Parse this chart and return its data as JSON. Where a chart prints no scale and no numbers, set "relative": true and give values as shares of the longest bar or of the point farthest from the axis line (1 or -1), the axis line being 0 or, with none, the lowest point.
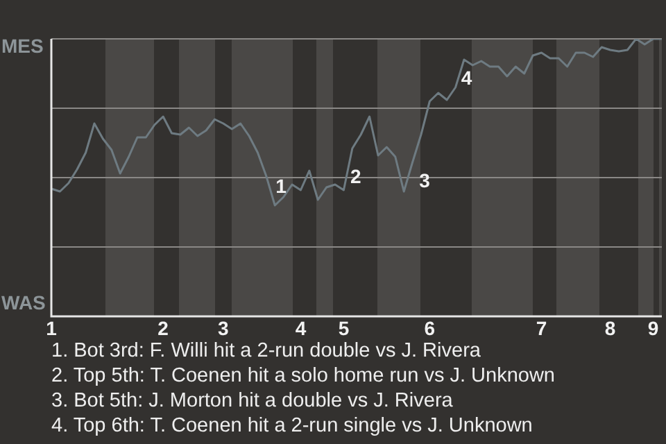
{
  "chart_data": {
    "type": "line",
    "relative": true,
    "categories": [
      "1",
      null,
      null,
      null,
      null,
      null,
      null,
      null,
      null,
      null,
      null,
      null,
      null,
      "2",
      null,
      null,
      null,
      null,
      null,
      null,
      "3",
      null,
      null,
      null,
      null,
      null,
      null,
      null,
      null,
      "4",
      null,
      null,
      null,
      null,
      "5",
      null,
      null,
      null,
      null,
      null,
      null,
      null,
      null,
      null,
      "6",
      null,
      null,
      null,
      null,
      null,
      null,
      null,
      null,
      null,
      null,
      null,
      null,
      "7",
      null,
      null,
      null,
      null,
      null,
      null,
      null,
      "8",
      null,
      null,
      null,
      null,
      "9",
      null
    ],
    "series": [
      {
        "color": "#6e7b82",
        "values": [
          0.46,
          0.45,
          0.48,
          0.53,
          0.59,
          0.695,
          0.64,
          0.6,
          0.515,
          0.575,
          0.645,
          0.645,
          0.69,
          0.72,
          0.66,
          0.655,
          0.68,
          0.65,
          0.67,
          0.71,
          0.695,
          0.675,
          0.695,
          0.65,
          0.59,
          0.505,
          0.4,
          0.43,
          0.475,
          0.455,
          0.525,
          0.42,
          0.465,
          0.475,
          0.455,
          0.605,
          0.655,
          0.72,
          0.58,
          0.61,
          0.575,
          0.45,
          0.555,
          0.655,
          0.775,
          0.805,
          0.78,
          0.825,
          0.925,
          0.905,
          0.92,
          0.9,
          0.9,
          0.865,
          0.9,
          0.875,
          0.94,
          0.95,
          0.93,
          0.93,
          0.9,
          0.95,
          0.95,
          0.935,
          0.97,
          0.96,
          0.955,
          0.96,
          1,
          0.98,
          1,
          1
        ]
      }
    ],
    "grid": "y",
    "marker": "none",
    "line_style": "solid",
    "annotations": [
      "MES",
      "WAS",
      "1",
      "2",
      "3",
      "4",
      "1. Bot 3rd: F. Willi hit a 2-run double vs J. Rivera",
      "2. Top 5th: T. Coenen hit a solo home run vs J. Unknown",
      "3. Bot 5th: J. Morton hit a double vs J. Rivera",
      "4. Top 6th: T. Coenen hit a 2-run single vs J. Unknown"
    ]
  }
}
